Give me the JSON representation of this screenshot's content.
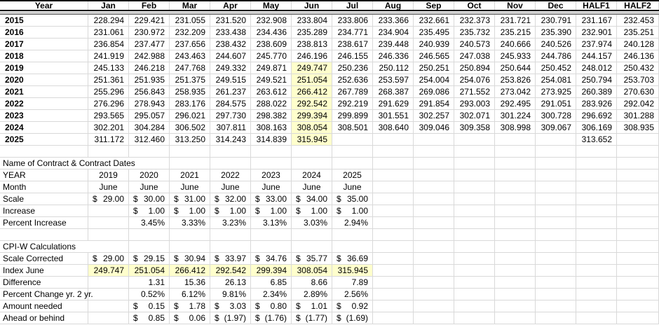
{
  "colors": {
    "highlight": "#FFFFCC",
    "gridline": "#D9D9D9",
    "header_border": "#000000",
    "text": "#000000"
  },
  "top_table": {
    "col_headers": [
      "Year",
      "Jan",
      "Feb",
      "Mar",
      "Apr",
      "May",
      "Jun",
      "Jul",
      "Aug",
      "Sep",
      "Oct",
      "Nov",
      "Dec",
      "HALF1",
      "HALF2"
    ],
    "highlight_col": "Jun",
    "rows": [
      {
        "year": "2015",
        "highlight_jun": false,
        "values": [
          "228.294",
          "229.421",
          "231.055",
          "231.520",
          "232.908",
          "233.804",
          "233.806",
          "233.366",
          "232.661",
          "232.373",
          "231.721",
          "230.791",
          "231.167",
          "232.453"
        ]
      },
      {
        "year": "2016",
        "highlight_jun": false,
        "values": [
          "231.061",
          "230.972",
          "232.209",
          "233.438",
          "234.436",
          "235.289",
          "234.771",
          "234.904",
          "235.495",
          "235.732",
          "235.215",
          "235.390",
          "232.901",
          "235.251"
        ]
      },
      {
        "year": "2017",
        "highlight_jun": false,
        "values": [
          "236.854",
          "237.477",
          "237.656",
          "238.432",
          "238.609",
          "238.813",
          "238.617",
          "239.448",
          "240.939",
          "240.573",
          "240.666",
          "240.526",
          "237.974",
          "240.128"
        ]
      },
      {
        "year": "2018",
        "highlight_jun": false,
        "values": [
          "241.919",
          "242.988",
          "243.463",
          "244.607",
          "245.770",
          "246.196",
          "246.155",
          "246.336",
          "246.565",
          "247.038",
          "245.933",
          "244.786",
          "244.157",
          "246.136"
        ]
      },
      {
        "year": "2019",
        "highlight_jun": true,
        "values": [
          "245.133",
          "246.218",
          "247.768",
          "249.332",
          "249.871",
          "249.747",
          "250.236",
          "250.112",
          "250.251",
          "250.894",
          "250.644",
          "250.452",
          "248.012",
          "250.432"
        ]
      },
      {
        "year": "2020",
        "highlight_jun": true,
        "values": [
          "251.361",
          "251.935",
          "251.375",
          "249.515",
          "249.521",
          "251.054",
          "252.636",
          "253.597",
          "254.004",
          "254.076",
          "253.826",
          "254.081",
          "250.794",
          "253.703"
        ]
      },
      {
        "year": "2021",
        "highlight_jun": true,
        "values": [
          "255.296",
          "256.843",
          "258.935",
          "261.237",
          "263.612",
          "266.412",
          "267.789",
          "268.387",
          "269.086",
          "271.552",
          "273.042",
          "273.925",
          "260.389",
          "270.630"
        ]
      },
      {
        "year": "2022",
        "highlight_jun": true,
        "values": [
          "276.296",
          "278.943",
          "283.176",
          "284.575",
          "288.022",
          "292.542",
          "292.219",
          "291.629",
          "291.854",
          "293.003",
          "292.495",
          "291.051",
          "283.926",
          "292.042"
        ]
      },
      {
        "year": "2023",
        "highlight_jun": true,
        "values": [
          "293.565",
          "295.057",
          "296.021",
          "297.730",
          "298.382",
          "299.394",
          "299.899",
          "301.551",
          "302.257",
          "302.071",
          "301.224",
          "300.728",
          "296.692",
          "301.288"
        ]
      },
      {
        "year": "2024",
        "highlight_jun": true,
        "values": [
          "302.201",
          "304.284",
          "306.502",
          "307.811",
          "308.163",
          "308.054",
          "308.501",
          "308.640",
          "309.046",
          "309.358",
          "308.998",
          "309.067",
          "306.169",
          "308.935"
        ]
      },
      {
        "year": "2025",
        "highlight_jun": true,
        "values": [
          "311.172",
          "312.460",
          "313.250",
          "314.243",
          "314.839",
          "315.945",
          "",
          "",
          "",
          "",
          "",
          "",
          "313.652",
          ""
        ]
      }
    ]
  },
  "contract_section": {
    "title": "Name of Contract & Contract Dates",
    "years": [
      "2019",
      "2020",
      "2021",
      "2022",
      "2023",
      "2024",
      "2025"
    ],
    "rows": [
      {
        "label": "YEAR",
        "type": "center",
        "highlight": false,
        "values": [
          "2019",
          "2020",
          "2021",
          "2022",
          "2023",
          "2024",
          "2025"
        ]
      },
      {
        "label": "Month",
        "type": "center",
        "highlight": false,
        "values": [
          "June",
          "June",
          "June",
          "June",
          "June",
          "June",
          "June"
        ]
      },
      {
        "label": "Scale",
        "type": "currency",
        "highlight": false,
        "values": [
          "29.00",
          "30.00",
          "31.00",
          "32.00",
          "33.00",
          "34.00",
          "35.00"
        ]
      },
      {
        "label": "Increase",
        "type": "currency",
        "highlight": false,
        "values": [
          "",
          "1.00",
          "1.00",
          "1.00",
          "1.00",
          "1.00",
          "1.00"
        ]
      },
      {
        "label": "Percent Increase",
        "type": "right",
        "highlight": false,
        "values": [
          "",
          "3.45%",
          "3.33%",
          "3.23%",
          "3.13%",
          "3.03%",
          "2.94%"
        ]
      }
    ]
  },
  "cpiw_section": {
    "title": "CPI-W Calculations",
    "rows": [
      {
        "label": "Scale Corrected",
        "type": "currency",
        "highlight": false,
        "values": [
          "29.00",
          "29.15",
          "30.94",
          "33.97",
          "34.76",
          "35.77",
          "36.69"
        ]
      },
      {
        "label": "Index June",
        "type": "right",
        "highlight": true,
        "values": [
          "249.747",
          "251.054",
          "266.412",
          "292.542",
          "299.394",
          "308.054",
          "315.945"
        ]
      },
      {
        "label": "Difference",
        "type": "right",
        "highlight": false,
        "values": [
          "",
          "1.31",
          "15.36",
          "26.13",
          "6.85",
          "8.66",
          "7.89"
        ]
      },
      {
        "label": "Percent Change yr. 2 yr.",
        "type": "right",
        "highlight": false,
        "values": [
          "",
          "0.52%",
          "6.12%",
          "9.81%",
          "2.34%",
          "2.89%",
          "2.56%"
        ]
      },
      {
        "label": "Amount needed",
        "type": "currency",
        "highlight": false,
        "values": [
          "",
          "0.15",
          "1.78",
          "3.03",
          "0.80",
          "1.01",
          "0.92"
        ]
      },
      {
        "label": "Ahead or behind",
        "type": "currency",
        "highlight": false,
        "values": [
          "",
          "0.85",
          "0.06",
          "(1.97)",
          "(1.76)",
          "(1.77)",
          "(1.69)"
        ]
      }
    ]
  }
}
